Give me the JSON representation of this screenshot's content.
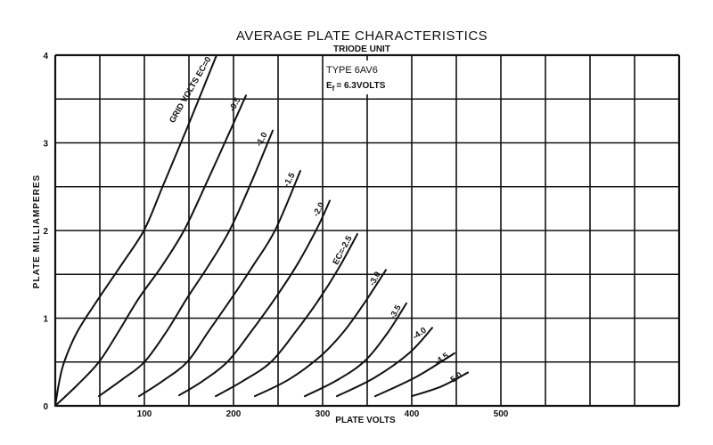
{
  "chart_data": {
    "type": "line",
    "title": "AVERAGE PLATE CHARACTERISTICS",
    "subtitle": "TRIODE UNIT",
    "xlabel": "PLATE VOLTS",
    "ylabel": "PLATE MILLIAMPERES",
    "xlim": [
      0,
      700
    ],
    "ylim": [
      0,
      4
    ],
    "x_grid_step": 50,
    "y_grid_step": 0.5,
    "grid": true,
    "x_ticks": [
      100,
      200,
      300,
      400,
      500
    ],
    "x_tick_labels": [
      "100",
      "200",
      "300",
      "400",
      "500"
    ],
    "y_ticks": [
      0,
      1,
      2,
      3,
      4
    ],
    "y_tick_labels": [
      "0",
      "1",
      "2",
      "3",
      "4"
    ],
    "annotations": {
      "type": "TYPE 6AV6",
      "heater_prefix": "E",
      "heater_sub": "f",
      "heater_value": "= 6.3VOLTS"
    },
    "series": [
      {
        "name": "Ec=0",
        "label": "GRID VOLTS EC=0",
        "points": [
          [
            0,
            0
          ],
          [
            4,
            0.25
          ],
          [
            10,
            0.5
          ],
          [
            25,
            0.85
          ],
          [
            49,
            1.23
          ],
          [
            75,
            1.62
          ],
          [
            100,
            2.01
          ],
          [
            120,
            2.49
          ],
          [
            148,
            3.17
          ],
          [
            181,
            4.0
          ]
        ]
      },
      {
        "name": "Ec=-0.5",
        "label": "-0.5",
        "points": [
          [
            0,
            0
          ],
          [
            25,
            0.24
          ],
          [
            49,
            0.5
          ],
          [
            70,
            0.83
          ],
          [
            94,
            1.23
          ],
          [
            120,
            1.6
          ],
          [
            145,
            2.01
          ],
          [
            170,
            2.55
          ],
          [
            199,
            3.2
          ],
          [
            214,
            3.54
          ]
        ]
      },
      {
        "name": "Ec=-1.0",
        "label": "-1.0",
        "points": [
          [
            49,
            0.11
          ],
          [
            75,
            0.3
          ],
          [
            100,
            0.5
          ],
          [
            125,
            0.85
          ],
          [
            148,
            1.23
          ],
          [
            172,
            1.6
          ],
          [
            196,
            2.01
          ],
          [
            220,
            2.55
          ],
          [
            244,
            3.14
          ]
        ]
      },
      {
        "name": "Ec=-1.5",
        "label": "-1.5",
        "points": [
          [
            94,
            0.11
          ],
          [
            120,
            0.28
          ],
          [
            148,
            0.5
          ],
          [
            172,
            0.85
          ],
          [
            198,
            1.23
          ],
          [
            222,
            1.6
          ],
          [
            247,
            2.01
          ],
          [
            275,
            2.68
          ]
        ]
      },
      {
        "name": "Ec=-2.0",
        "label": "-2.0",
        "points": [
          [
            139,
            0.12
          ],
          [
            165,
            0.28
          ],
          [
            193,
            0.5
          ],
          [
            220,
            0.85
          ],
          [
            247,
            1.23
          ],
          [
            272,
            1.62
          ],
          [
            295,
            2.05
          ],
          [
            308,
            2.34
          ]
        ]
      },
      {
        "name": "Ec=-2.5",
        "label": "EC=-2.5",
        "points": [
          [
            180,
            0.11
          ],
          [
            210,
            0.28
          ],
          [
            242,
            0.5
          ],
          [
            270,
            0.85
          ],
          [
            295,
            1.2
          ],
          [
            318,
            1.57
          ],
          [
            339,
            1.96
          ]
        ]
      },
      {
        "name": "Ec=-3.0",
        "label": "-3.0",
        "points": [
          [
            224,
            0.11
          ],
          [
            262,
            0.3
          ],
          [
            298,
            0.57
          ],
          [
            324,
            0.85
          ],
          [
            346,
            1.16
          ],
          [
            371,
            1.55
          ]
        ]
      },
      {
        "name": "Ec=-3.5",
        "label": "-3.5",
        "points": [
          [
            280,
            0.11
          ],
          [
            314,
            0.28
          ],
          [
            346,
            0.5
          ],
          [
            372,
            0.82
          ],
          [
            394,
            1.17
          ]
        ]
      },
      {
        "name": "Ec=-4.0",
        "label": "-4.0",
        "points": [
          [
            316,
            0.11
          ],
          [
            358,
            0.32
          ],
          [
            397,
            0.6
          ],
          [
            423,
            0.89
          ]
        ]
      },
      {
        "name": "Ec=-4.5",
        "label": "-4.5",
        "points": [
          [
            359,
            0.11
          ],
          [
            405,
            0.33
          ],
          [
            448,
            0.6
          ]
        ]
      },
      {
        "name": "Ec=-5.0",
        "label": "-5.0",
        "points": [
          [
            400,
            0.11
          ],
          [
            433,
            0.22
          ],
          [
            463,
            0.38
          ]
        ]
      }
    ]
  }
}
